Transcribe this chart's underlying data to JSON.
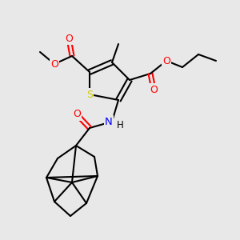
{
  "bg_color": "#e8e8e8",
  "atom_colors": {
    "S": "#cccc00",
    "N": "#0000ff",
    "O": "#ff0000",
    "C": "#000000"
  },
  "bond_color": "#000000",
  "bond_width": 1.5
}
